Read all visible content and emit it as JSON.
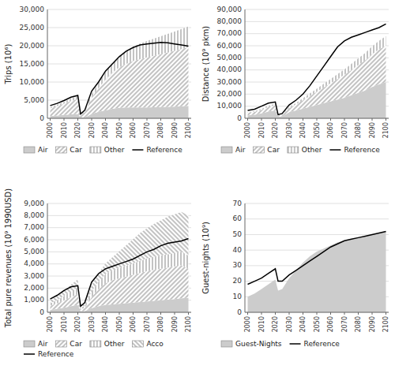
{
  "chart_data": [
    {
      "type": "area",
      "stacked": true,
      "grid": true,
      "legend": "bottom",
      "y_label": "Trips (10⁶)",
      "x": [
        2000,
        2005,
        2010,
        2015,
        2020,
        2022,
        2025,
        2030,
        2035,
        2040,
        2045,
        2050,
        2055,
        2060,
        2065,
        2070,
        2075,
        2080,
        2085,
        2090,
        2095,
        2100
      ],
      "xlim": [
        1998,
        2102
      ],
      "xticks": [
        2000,
        2010,
        2020,
        2030,
        2040,
        2050,
        2060,
        2070,
        2080,
        2090,
        2100
      ],
      "ylim": [
        0,
        30000
      ],
      "yticks": [
        0,
        {
          "value": 5000,
          "label": "5,000"
        },
        {
          "value": 10000,
          "label": "10,000"
        },
        {
          "value": 15000,
          "label": "15,000"
        },
        {
          "value": 20000,
          "label": "20,000"
        },
        {
          "value": 25000,
          "label": "25,000"
        },
        {
          "value": 30000,
          "label": "30,000"
        }
      ],
      "series": [
        {
          "name": "Air",
          "type": "area",
          "color": "#cccccc",
          "values": [
            600,
            750,
            900,
            1100,
            1200,
            200,
            200,
            1200,
            1800,
            2200,
            2600,
            2900,
            3000,
            3000,
            3000,
            3000,
            3050,
            3100,
            3150,
            3200,
            3300,
            3400
          ]
        },
        {
          "name": "Car",
          "type": "area",
          "color": "#666666",
          "values": [
            2200,
            2600,
            3100,
            3700,
            4100,
            800,
            1500,
            4500,
            6500,
            8500,
            10000,
            11200,
            12000,
            12800,
            13300,
            13800,
            14200,
            14600,
            15000,
            15400,
            15800,
            16200
          ]
        },
        {
          "name": "Other",
          "type": "area",
          "color": "#666666",
          "values": [
            300,
            400,
            500,
            700,
            900,
            200,
            300,
            1000,
            1500,
            2000,
            2500,
            3000,
            3500,
            4000,
            4300,
            4500,
            4700,
            4900,
            5100,
            5300,
            5500,
            5700
          ]
        },
        {
          "name": "Reference",
          "type": "line",
          "color": "#000000",
          "values": [
            3500,
            4100,
            4900,
            5800,
            6300,
            1200,
            2200,
            7500,
            10000,
            13000,
            15000,
            17000,
            18500,
            19500,
            20200,
            20500,
            20700,
            20900,
            20800,
            20500,
            20200,
            19900
          ]
        }
      ]
    },
    {
      "type": "area",
      "stacked": true,
      "grid": true,
      "legend": "bottom",
      "y_label": "Distance (10⁹ pkm)",
      "x": [
        2000,
        2005,
        2010,
        2015,
        2020,
        2022,
        2025,
        2030,
        2035,
        2040,
        2045,
        2050,
        2055,
        2060,
        2065,
        2070,
        2075,
        2080,
        2085,
        2090,
        2095,
        2100
      ],
      "xlim": [
        1998,
        2102
      ],
      "xticks": [
        2000,
        2010,
        2020,
        2030,
        2040,
        2050,
        2060,
        2070,
        2080,
        2090,
        2100
      ],
      "ylim": [
        0,
        90000
      ],
      "yticks": [
        0,
        {
          "value": 10000,
          "label": "10,000"
        },
        {
          "value": 20000,
          "label": "20,000"
        },
        {
          "value": 30000,
          "label": "30,000"
        },
        {
          "value": 40000,
          "label": "40,000"
        },
        {
          "value": 50000,
          "label": "50,000"
        },
        {
          "value": 60000,
          "label": "60,000"
        },
        {
          "value": 70000,
          "label": "70,000"
        },
        {
          "value": 80000,
          "label": "80,000"
        },
        {
          "value": 90000,
          "label": "90,000"
        }
      ],
      "series": [
        {
          "name": "Air",
          "type": "area",
          "color": "#cccccc",
          "values": [
            2500,
            3000,
            4000,
            5500,
            6500,
            1500,
            1500,
            5000,
            6500,
            8000,
            9500,
            11000,
            12500,
            14000,
            15500,
            17000,
            19000,
            21000,
            23000,
            26000,
            28000,
            30000
          ]
        },
        {
          "name": "Car",
          "type": "area",
          "color": "#666666",
          "values": [
            2000,
            2300,
            3000,
            4000,
            4500,
            1000,
            1500,
            3500,
            5000,
            7000,
            9000,
            11000,
            13000,
            15000,
            17000,
            19000,
            21000,
            23000,
            25000,
            27000,
            29000,
            30000
          ]
        },
        {
          "name": "Other",
          "type": "area",
          "color": "#666666",
          "values": [
            500,
            600,
            800,
            900,
            1000,
            400,
            500,
            900,
            1200,
            1600,
            2000,
            2500,
            3000,
            3500,
            4000,
            4500,
            5000,
            5500,
            6000,
            6500,
            7000,
            8000
          ]
        },
        {
          "name": "Reference",
          "type": "line",
          "color": "#000000",
          "values": [
            6500,
            7500,
            10000,
            12500,
            13500,
            3000,
            4000,
            11000,
            15000,
            20000,
            27000,
            35000,
            43000,
            51000,
            59000,
            64000,
            67000,
            69000,
            71000,
            73000,
            75000,
            78000
          ]
        }
      ]
    },
    {
      "type": "area",
      "stacked": true,
      "grid": true,
      "legend": "bottom",
      "y_label": "Total pure revenues (10⁹ 1990USD)",
      "x": [
        2000,
        2005,
        2010,
        2015,
        2020,
        2022,
        2025,
        2030,
        2035,
        2040,
        2045,
        2050,
        2055,
        2060,
        2065,
        2070,
        2075,
        2080,
        2085,
        2090,
        2095,
        2100
      ],
      "xlim": [
        1998,
        2102
      ],
      "xticks": [
        2000,
        2010,
        2020,
        2030,
        2040,
        2050,
        2060,
        2070,
        2080,
        2090,
        2100
      ],
      "ylim": [
        0,
        9000
      ],
      "yticks": [
        0,
        {
          "value": 1000,
          "label": "1,000"
        },
        {
          "value": 2000,
          "label": "2,000"
        },
        {
          "value": 3000,
          "label": "3,000"
        },
        {
          "value": 4000,
          "label": "4,000"
        },
        {
          "value": 5000,
          "label": "5,000"
        },
        {
          "value": 6000,
          "label": "6,000"
        },
        {
          "value": 7000,
          "label": "7,000"
        },
        {
          "value": 8000,
          "label": "8,000"
        },
        {
          "value": 9000,
          "label": "9,000"
        }
      ],
      "series": [
        {
          "name": "Air",
          "type": "area",
          "color": "#cccccc",
          "values": [
            200,
            280,
            380,
            500,
            600,
            100,
            100,
            350,
            500,
            600,
            650,
            700,
            750,
            800,
            850,
            900,
            950,
            1000,
            1050,
            1100,
            1150,
            1200
          ]
        },
        {
          "name": "Car",
          "type": "area",
          "color": "#666666",
          "values": [
            350,
            450,
            600,
            750,
            900,
            200,
            250,
            900,
            1400,
            1800,
            2000,
            2100,
            2200,
            2300,
            2400,
            2500,
            2550,
            2600,
            2650,
            2700,
            2750,
            2400
          ]
        },
        {
          "name": "Other",
          "type": "area",
          "color": "#666666",
          "values": [
            200,
            270,
            380,
            480,
            550,
            100,
            150,
            500,
            650,
            750,
            800,
            850,
            900,
            950,
            1000,
            1050,
            1100,
            1100,
            1100,
            1100,
            1100,
            1100
          ]
        },
        {
          "name": "Acco",
          "type": "area",
          "color": "#666666",
          "values": [
            250,
            320,
            430,
            550,
            680,
            200,
            200,
            500,
            700,
            900,
            1100,
            1400,
            1700,
            2000,
            2300,
            2500,
            2700,
            2900,
            3100,
            3200,
            3300,
            3300
          ]
        },
        {
          "name": "Reference",
          "type": "line",
          "color": "#000000",
          "values": [
            1100,
            1400,
            1800,
            2100,
            2200,
            500,
            800,
            2500,
            3200,
            3600,
            3800,
            4000,
            4200,
            4400,
            4700,
            5000,
            5200,
            5500,
            5700,
            5800,
            5900,
            6100
          ]
        }
      ]
    },
    {
      "type": "area",
      "stacked": true,
      "grid": true,
      "legend": "bottom",
      "y_label": "Guest-nights (10⁹)",
      "x": [
        2000,
        2005,
        2010,
        2015,
        2020,
        2022,
        2025,
        2030,
        2035,
        2040,
        2045,
        2050,
        2055,
        2060,
        2065,
        2070,
        2075,
        2080,
        2085,
        2090,
        2095,
        2100
      ],
      "xlim": [
        1998,
        2102
      ],
      "xticks": [
        2000,
        2010,
        2020,
        2030,
        2040,
        2050,
        2060,
        2070,
        2080,
        2090,
        2100
      ],
      "ylim": [
        0,
        70
      ],
      "yticks": [
        0,
        10,
        20,
        30,
        40,
        50,
        60,
        70
      ],
      "series": [
        {
          "name": "Guest-Nights",
          "type": "area",
          "color": "#cccccc",
          "values": [
            10,
            12,
            15,
            18,
            21,
            14,
            15,
            22,
            27,
            32,
            36,
            39,
            41,
            43,
            45,
            46,
            47,
            48,
            49,
            50,
            51,
            52
          ]
        },
        {
          "name": "Reference",
          "type": "line",
          "color": "#000000",
          "values": [
            18,
            20,
            22,
            25,
            28,
            20,
            20,
            24,
            27,
            30,
            33,
            36,
            39,
            42,
            44,
            46,
            47,
            48,
            49,
            50,
            51,
            52
          ]
        }
      ]
    }
  ]
}
